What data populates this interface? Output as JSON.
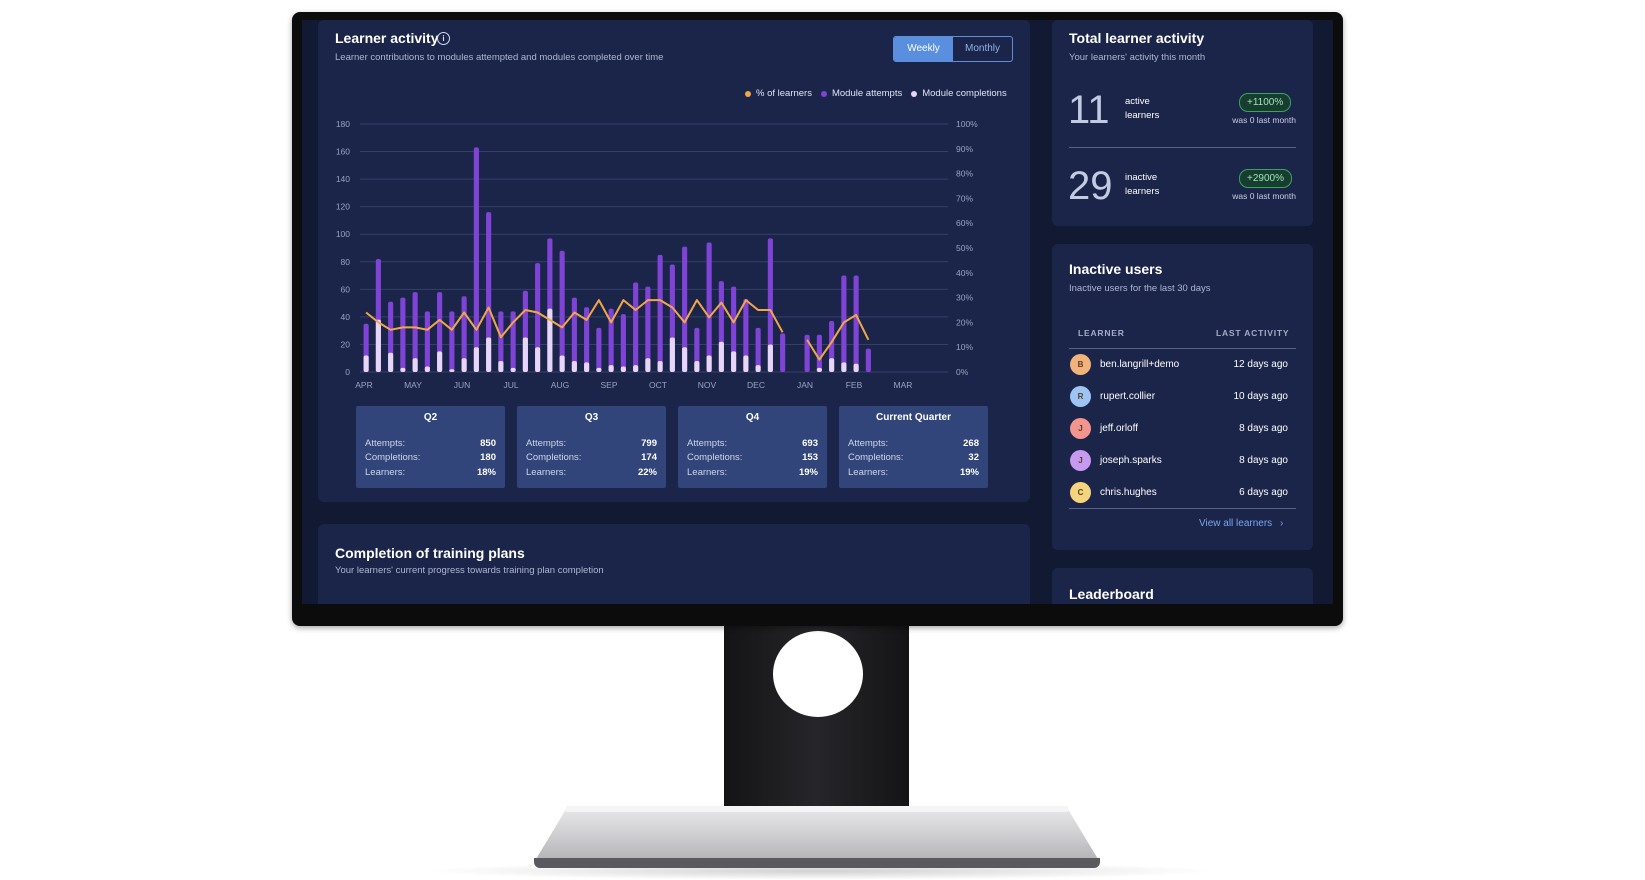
{
  "activity": {
    "title": "Learner activity",
    "subtitle": "Learner contributions to modules attempted and modules completed over time",
    "toggle": {
      "weekly": "Weekly",
      "monthly": "Monthly",
      "selected": "Weekly"
    },
    "legend": {
      "pct": "% of learners",
      "attempts": "Module attempts",
      "completions": "Module completions"
    },
    "colors": {
      "pct": "#f2a64a",
      "attempts": "#7f43d6",
      "completions": "#e7d6f8"
    },
    "quarters": [
      {
        "title": "Q2",
        "attempts_label": "Attempts:",
        "attempts": "850",
        "completions_label": "Completions:",
        "completions": "180",
        "learners_label": "Learners:",
        "learners": "18%"
      },
      {
        "title": "Q3",
        "attempts_label": "Attempts:",
        "attempts": "799",
        "completions_label": "Completions:",
        "completions": "174",
        "learners_label": "Learners:",
        "learners": "22%"
      },
      {
        "title": "Q4",
        "attempts_label": "Attempts:",
        "attempts": "693",
        "completions_label": "Completions:",
        "completions": "153",
        "learners_label": "Learners:",
        "learners": "19%"
      },
      {
        "title": "Current Quarter",
        "attempts_label": "Attempts:",
        "attempts": "268",
        "completions_label": "Completions:",
        "completions": "32",
        "learners_label": "Learners:",
        "learners": "19%"
      }
    ]
  },
  "chart_data": {
    "type": "bar",
    "title": "Learner activity",
    "xlabel": "",
    "ylabel": "",
    "x_tick_labels": [
      "APR",
      "MAY",
      "JUN",
      "JUL",
      "AUG",
      "SEP",
      "OCT",
      "NOV",
      "DEC",
      "JAN",
      "FEB",
      "MAR"
    ],
    "y_ticks": [
      "0",
      "20",
      "40",
      "60",
      "80",
      "100",
      "120",
      "140",
      "160",
      "180"
    ],
    "y2_ticks": [
      "0%",
      "10%",
      "20%",
      "30%",
      "40%",
      "50%",
      "60%",
      "70%",
      "80%",
      "90%",
      "100%"
    ],
    "ylim": [
      0,
      180
    ],
    "y2lim": [
      0,
      100
    ],
    "grid": true,
    "legend_position": "top-right",
    "series": [
      {
        "name": "Module attempts",
        "axis": "left",
        "values": [
          35,
          82,
          51,
          54,
          58,
          44,
          58,
          44,
          55,
          163,
          116,
          44,
          44,
          59,
          79,
          97,
          88,
          54,
          47,
          32,
          46,
          42,
          65,
          62,
          85,
          78,
          91,
          32,
          94,
          66,
          62,
          53,
          32,
          97,
          28,
          null,
          27,
          27,
          37,
          70,
          70,
          17,
          null,
          null,
          null,
          null,
          null,
          null
        ]
      },
      {
        "name": "Module completions",
        "axis": "left",
        "values": [
          12,
          38,
          14,
          3,
          10,
          4,
          15,
          2,
          10,
          18,
          25,
          8,
          3,
          25,
          18,
          46,
          12,
          8,
          7,
          3,
          5,
          4,
          5,
          10,
          8,
          25,
          18,
          8,
          12,
          22,
          15,
          12,
          5,
          20,
          0,
          null,
          0,
          3,
          10,
          7,
          6,
          0,
          null,
          null,
          null,
          null,
          null,
          null
        ]
      },
      {
        "name": "% of learners",
        "axis": "right",
        "values": [
          24,
          20,
          17,
          18,
          18,
          17,
          21,
          17,
          24,
          17,
          26,
          14,
          20,
          25,
          24,
          21,
          18,
          24,
          21,
          29,
          20,
          29,
          25,
          29,
          29,
          26,
          20,
          29,
          22,
          28,
          20,
          29,
          25,
          25,
          16,
          null,
          13,
          5,
          12,
          20,
          23,
          13,
          null,
          null,
          null,
          null,
          null,
          null
        ]
      }
    ]
  },
  "completion": {
    "title": "Completion of training plans",
    "subtitle": "Your learners' current progress towards training plan completion"
  },
  "total": {
    "title": "Total learner activity",
    "subtitle": "Your learners' activity this month",
    "active": {
      "value": "11",
      "label_1": "active",
      "label_2": "learners",
      "badge": "+1100%",
      "was": "was 0 last month"
    },
    "inactive": {
      "value": "29",
      "label_1": "inactive",
      "label_2": "learners",
      "badge": "+2900%",
      "was": "was 0 last month"
    }
  },
  "inactive_users": {
    "title": "Inactive users",
    "subtitle": "Inactive users for the last 30 days",
    "col_learner": "LEARNER",
    "col_last": "LAST ACTIVITY",
    "rows": [
      {
        "initial": "B",
        "name": "ben.langrill+demo",
        "last": "12 days ago",
        "color": "#f1b27c"
      },
      {
        "initial": "R",
        "name": "rupert.collier",
        "last": "10 days ago",
        "color": "#9ec4f4"
      },
      {
        "initial": "J",
        "name": "jeff.orloff",
        "last": "8 days ago",
        "color": "#f2958f"
      },
      {
        "initial": "J",
        "name": "joseph.sparks",
        "last": "8 days ago",
        "color": "#c79af0"
      },
      {
        "initial": "C",
        "name": "chris.hughes",
        "last": "6 days ago",
        "color": "#f5d47e"
      }
    ],
    "view_all": "View all learners"
  },
  "leaderboard": {
    "title": "Leaderboard"
  }
}
